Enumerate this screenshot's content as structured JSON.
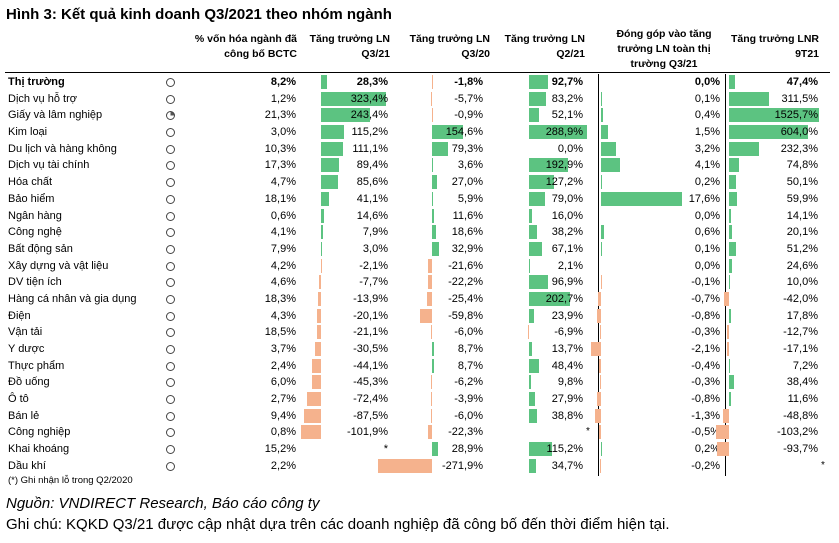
{
  "title": "Hình 3: Kết quả kinh doanh Q3/2021 theo nhóm ngành",
  "headers": {
    "cap": [
      "% vốn hóa ngành đã",
      "công bố BCTC"
    ],
    "q321": [
      "Tăng trưởng LN",
      "Q3/21"
    ],
    "q320": [
      "Tăng trưởng LN",
      "Q3/20"
    ],
    "q221": [
      "Tăng trưởng LN",
      "Q2/21"
    ],
    "contrib": [
      "Đóng góp vào tăng",
      "trưởng LN toàn thị",
      "trường Q3/21"
    ],
    "ytd": [
      "Tăng trưởng LNR",
      "9T21"
    ]
  },
  "colors": {
    "positive_bar": "#5cc381",
    "negative_bar": "#f5b28d"
  },
  "rows": [
    {
      "name": "Thị trường",
      "status": "empty",
      "cap": "8,2%",
      "q321": "28,3%",
      "q320": "-1,8%",
      "q221": "92,7%",
      "contrib": "0,0%",
      "ytd": "47,4%",
      "v": [
        28.3,
        -1.8,
        92.7,
        0.0,
        47.4
      ],
      "bold": true
    },
    {
      "name": "Dịch vụ hỗ trợ",
      "status": "empty",
      "cap": "1,2%",
      "q321": "323,4%",
      "q320": "-5,7%",
      "q221": "83,2%",
      "contrib": "0,1%",
      "ytd": "311,5%",
      "v": [
        323.4,
        -5.7,
        83.2,
        0.1,
        311.5
      ]
    },
    {
      "name": "Giấy và lâm nghiệp",
      "status": "quarter",
      "cap": "21,3%",
      "q321": "243,4%",
      "q320": "-0,9%",
      "q221": "52,1%",
      "contrib": "0,4%",
      "ytd": "1525,7%",
      "v": [
        243.4,
        -0.9,
        52.1,
        0.4,
        1525.7
      ]
    },
    {
      "name": "Kim loại",
      "status": "empty",
      "cap": "3,0%",
      "q321": "115,2%",
      "q320": "154,6%",
      "q221": "288,9%",
      "contrib": "1,5%",
      "ytd": "604,0%",
      "v": [
        115.2,
        154.6,
        288.9,
        1.5,
        604.0
      ]
    },
    {
      "name": "Du lịch và hàng không",
      "status": "empty",
      "cap": "10,3%",
      "q321": "111,1%",
      "q320": "79,3%",
      "q221": "0,0%",
      "contrib": "3,2%",
      "ytd": "232,3%",
      "v": [
        111.1,
        79.3,
        0.0,
        3.2,
        232.3
      ]
    },
    {
      "name": "Dịch vụ tài chính",
      "status": "empty",
      "cap": "17,3%",
      "q321": "89,4%",
      "q320": "3,6%",
      "q221": "192,9%",
      "contrib": "4,1%",
      "ytd": "74,8%",
      "v": [
        89.4,
        3.6,
        192.9,
        4.1,
        74.8
      ]
    },
    {
      "name": "Hóa chất",
      "status": "empty",
      "cap": "4,7%",
      "q321": "85,6%",
      "q320": "27,0%",
      "q221": "127,2%",
      "contrib": "0,2%",
      "ytd": "50,1%",
      "v": [
        85.6,
        27.0,
        127.2,
        0.2,
        50.1
      ]
    },
    {
      "name": "Bảo hiểm",
      "status": "empty",
      "cap": "18,1%",
      "q321": "41,1%",
      "q320": "5,9%",
      "q221": "79,0%",
      "contrib": "17,6%",
      "ytd": "59,9%",
      "v": [
        41.1,
        5.9,
        79.0,
        17.6,
        59.9
      ]
    },
    {
      "name": "Ngân hàng",
      "status": "empty",
      "cap": "0,6%",
      "q321": "14,6%",
      "q320": "11,6%",
      "q221": "16,0%",
      "contrib": "0,0%",
      "ytd": "14,1%",
      "v": [
        14.6,
        11.6,
        16.0,
        0.0,
        14.1
      ]
    },
    {
      "name": "Công nghệ",
      "status": "empty",
      "cap": "4,1%",
      "q321": "7,9%",
      "q320": "18,6%",
      "q221": "38,2%",
      "contrib": "0,6%",
      "ytd": "20,1%",
      "v": [
        7.9,
        18.6,
        38.2,
        0.6,
        20.1
      ]
    },
    {
      "name": "Bất động sản",
      "status": "empty",
      "cap": "7,9%",
      "q321": "3,0%",
      "q320": "32,9%",
      "q221": "67,1%",
      "contrib": "0,1%",
      "ytd": "51,2%",
      "v": [
        3.0,
        32.9,
        67.1,
        0.1,
        51.2
      ]
    },
    {
      "name": "Xây dựng và vật liệu",
      "status": "empty",
      "cap": "4,2%",
      "q321": "-2,1%",
      "q320": "-21,6%",
      "q221": "2,1%",
      "contrib": "0,0%",
      "ytd": "24,6%",
      "v": [
        -2.1,
        -21.6,
        2.1,
        0.0,
        24.6
      ]
    },
    {
      "name": "DV tiện ích",
      "status": "empty",
      "cap": "4,6%",
      "q321": "-7,7%",
      "q320": "-22,2%",
      "q221": "96,9%",
      "contrib": "-0,1%",
      "ytd": "10,0%",
      "v": [
        -7.7,
        -22.2,
        96.9,
        -0.1,
        10.0
      ]
    },
    {
      "name": "Hàng cá nhân và gia dụng",
      "status": "empty",
      "cap": "18,3%",
      "q321": "-13,9%",
      "q320": "-25,4%",
      "q221": "202,7%",
      "contrib": "-0,7%",
      "ytd": "-42,0%",
      "v": [
        -13.9,
        -25.4,
        202.7,
        -0.7,
        -42.0
      ]
    },
    {
      "name": "Điện",
      "status": "empty",
      "cap": "4,3%",
      "q321": "-20,1%",
      "q320": "-59,8%",
      "q221": "23,9%",
      "contrib": "-0,8%",
      "ytd": "17,8%",
      "v": [
        -20.1,
        -59.8,
        23.9,
        -0.8,
        17.8
      ]
    },
    {
      "name": "Vận tải",
      "status": "empty",
      "cap": "18,5%",
      "q321": "-21,1%",
      "q320": "-6,0%",
      "q221": "-6,9%",
      "contrib": "-0,3%",
      "ytd": "-12,7%",
      "v": [
        -21.1,
        -6.0,
        -6.9,
        -0.3,
        -12.7
      ]
    },
    {
      "name": "Y dược",
      "status": "empty",
      "cap": "3,7%",
      "q321": "-30,5%",
      "q320": "8,7%",
      "q221": "13,7%",
      "contrib": "-2,1%",
      "ytd": "-17,1%",
      "v": [
        -30.5,
        8.7,
        13.7,
        -2.1,
        -17.1
      ]
    },
    {
      "name": "Thực phẩm",
      "status": "empty",
      "cap": "2,4%",
      "q321": "-44,1%",
      "q320": "8,7%",
      "q221": "48,4%",
      "contrib": "-0,4%",
      "ytd": "7,2%",
      "v": [
        -44.1,
        8.7,
        48.4,
        -0.4,
        7.2
      ]
    },
    {
      "name": "Đồ uống",
      "status": "empty",
      "cap": "6,0%",
      "q321": "-45,3%",
      "q320": "-6,2%",
      "q221": "9,8%",
      "contrib": "-0,3%",
      "ytd": "38,4%",
      "v": [
        -45.3,
        -6.2,
        9.8,
        -0.3,
        38.4
      ]
    },
    {
      "name": "Ô tô",
      "status": "empty",
      "cap": "2,7%",
      "q321": "-72,4%",
      "q320": "-3,9%",
      "q221": "27,9%",
      "contrib": "-0,8%",
      "ytd": "11,6%",
      "v": [
        -72.4,
        -3.9,
        27.9,
        -0.8,
        11.6
      ]
    },
    {
      "name": "Bán lẻ",
      "status": "empty",
      "cap": "9,4%",
      "q321": "-87,5%",
      "q320": "-6,0%",
      "q221": "38,8%",
      "contrib": "-1,3%",
      "ytd": "-48,8%",
      "v": [
        -87.5,
        -6.0,
        38.8,
        -1.3,
        -48.8
      ]
    },
    {
      "name": "Công nghiệp",
      "status": "empty",
      "cap": "0,8%",
      "q321": "-101,9%",
      "q320": "-22,3%",
      "q221": "",
      "contrib": "-0,5%",
      "ytd": "-103,2%",
      "v": [
        -101.9,
        -22.3,
        null,
        -0.5,
        -103.2
      ],
      "q221_star": "*"
    },
    {
      "name": "Khai khoáng",
      "status": "empty",
      "cap": "15,2%",
      "q321": "*",
      "q320": "28,9%",
      "q221": "115,2%",
      "contrib": "0,2%",
      "ytd": "-93,7%",
      "v": [
        null,
        28.9,
        115.2,
        0.2,
        -93.7
      ]
    },
    {
      "name": "Dầu khí",
      "status": "empty",
      "cap": "2,2%",
      "q321": "*",
      "q320": "-271,9%",
      "q221": "34,7%",
      "contrib": "-0,2%",
      "ytd": "",
      "v": [
        null,
        -271.9,
        34.7,
        -0.2,
        null
      ],
      "ytd_star": "*"
    }
  ],
  "footnote": "(*) Ghi nhận lỗ trong Q2/2020",
  "source": "Nguồn: VNDIRECT Research, Báo cáo công ty",
  "note": "Ghi chú: KQKD Q3/21 được cập nhật dựa trên các doanh nghiệp đã công bố đến thời điểm hiện tại."
}
